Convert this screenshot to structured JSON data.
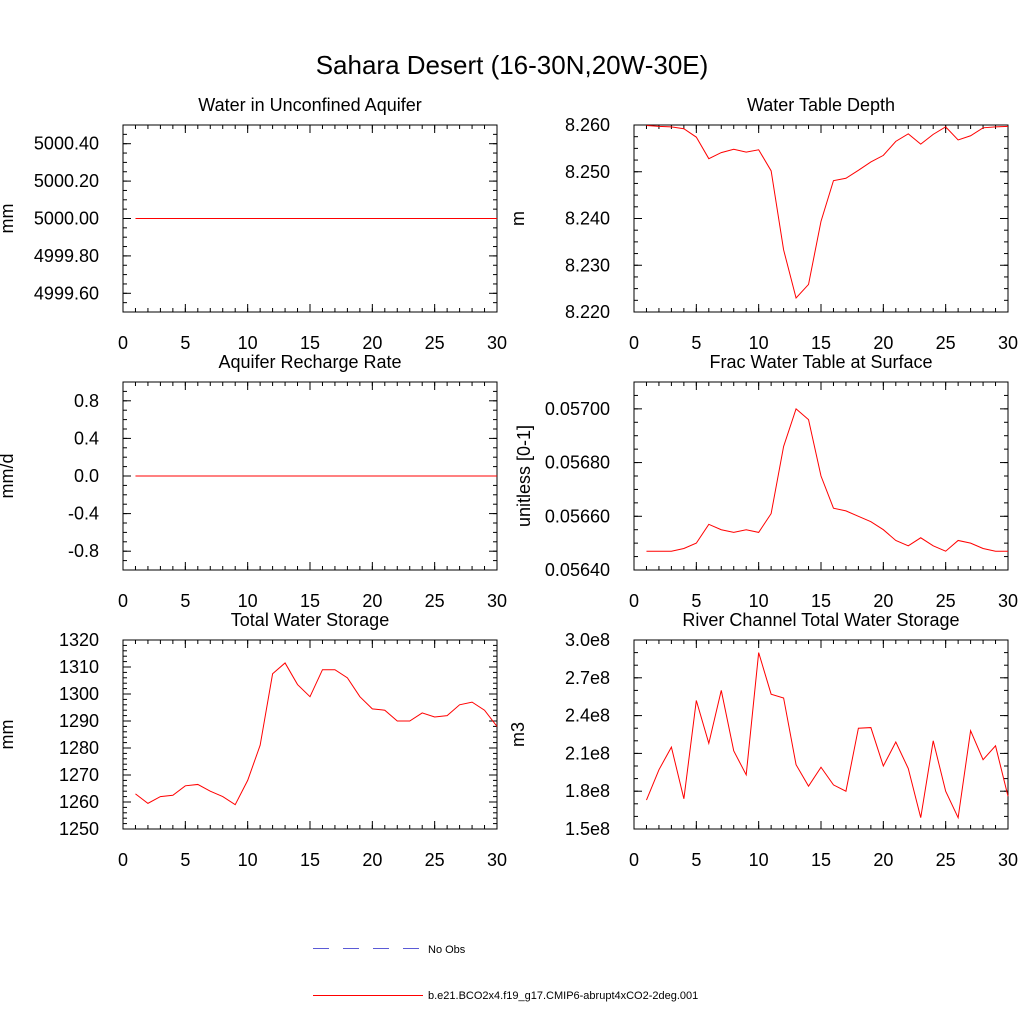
{
  "title": "Sahara Desert (16-30N,20W-30E)",
  "colors": {
    "model": "#ff0000",
    "obs": "#5b5bd6"
  },
  "legend": [
    {
      "label": "No Obs",
      "style": "dashed",
      "color": "#5b5bd6"
    },
    {
      "label": "b.e21.BCO2x4.f19_g17.CMIP6-abrupt4xCO2-2deg.001",
      "style": "solid",
      "color": "#ff0000"
    }
  ],
  "chart_data": [
    {
      "type": "line",
      "title": "Water in Unconfined Aquifer",
      "ylabel": "mm",
      "xlim": [
        0,
        30
      ],
      "xticks": [
        0,
        5,
        10,
        15,
        20,
        25,
        30
      ],
      "ylim": [
        4999.5,
        5000.5
      ],
      "yticks": [
        4999.6,
        4999.8,
        5000.0,
        5000.2,
        5000.4
      ],
      "ytick_labels": [
        "4999.60",
        "4999.80",
        "5000.00",
        "5000.20",
        "5000.40"
      ],
      "yminor": 0.05,
      "x": [
        1,
        2,
        3,
        4,
        5,
        6,
        7,
        8,
        9,
        10,
        11,
        12,
        13,
        14,
        15,
        16,
        17,
        18,
        19,
        20,
        21,
        22,
        23,
        24,
        25,
        26,
        27,
        28,
        29,
        30
      ],
      "series": [
        {
          "name": "b.e21.BCO2x4.f19_g17.CMIP6-abrupt4xCO2-2deg.001",
          "values": [
            5000,
            5000,
            5000,
            5000,
            5000,
            5000,
            5000,
            5000,
            5000,
            5000,
            5000,
            5000,
            5000,
            5000,
            5000,
            5000,
            5000,
            5000,
            5000,
            5000,
            5000,
            5000,
            5000,
            5000,
            5000,
            5000,
            5000,
            5000,
            5000,
            5000
          ]
        }
      ]
    },
    {
      "type": "line",
      "title": "Water Table Depth",
      "ylabel": "m",
      "xlim": [
        0,
        30
      ],
      "xticks": [
        0,
        5,
        10,
        15,
        20,
        25,
        30
      ],
      "ylim": [
        8.22,
        8.26
      ],
      "yticks": [
        8.22,
        8.23,
        8.24,
        8.25,
        8.26
      ],
      "ytick_labels": [
        "8.220",
        "8.230",
        "8.240",
        "8.250",
        "8.260"
      ],
      "yminor": 0.0025,
      "x": [
        1,
        2,
        3,
        4,
        5,
        6,
        7,
        8,
        9,
        10,
        11,
        12,
        13,
        14,
        15,
        16,
        17,
        18,
        19,
        20,
        21,
        22,
        23,
        24,
        25,
        26,
        27,
        28,
        29,
        30
      ],
      "series": [
        {
          "name": "b.e21.BCO2x4.f19_g17.CMIP6-abrupt4xCO2-2deg.001",
          "values": [
            8.2599,
            8.2597,
            8.2596,
            8.2592,
            8.2574,
            8.2528,
            8.2541,
            8.2548,
            8.2542,
            8.2547,
            8.2502,
            8.2333,
            8.223,
            8.2259,
            8.2394,
            8.2481,
            8.2486,
            8.2503,
            8.2521,
            8.2535,
            8.2565,
            8.2581,
            8.2559,
            8.258,
            8.2596,
            8.2568,
            8.2577,
            8.2594,
            8.2596,
            8.2597
          ]
        }
      ]
    },
    {
      "type": "line",
      "title": "Aquifer Recharge Rate",
      "ylabel": "mm/d",
      "xlim": [
        0,
        30
      ],
      "xticks": [
        0,
        5,
        10,
        15,
        20,
        25,
        30
      ],
      "ylim": [
        -1.0,
        1.0
      ],
      "yticks": [
        -0.8,
        -0.4,
        0.0,
        0.4,
        0.8
      ],
      "ytick_labels": [
        "-0.8",
        "-0.4",
        "0.0",
        "0.4",
        "0.8"
      ],
      "yminor": 0.1,
      "x": [
        1,
        2,
        3,
        4,
        5,
        6,
        7,
        8,
        9,
        10,
        11,
        12,
        13,
        14,
        15,
        16,
        17,
        18,
        19,
        20,
        21,
        22,
        23,
        24,
        25,
        26,
        27,
        28,
        29,
        30
      ],
      "series": [
        {
          "name": "b.e21.BCO2x4.f19_g17.CMIP6-abrupt4xCO2-2deg.001",
          "values": [
            0,
            0,
            0,
            0,
            0,
            0,
            0,
            0,
            0,
            0,
            0,
            0,
            0,
            0,
            0,
            0,
            0,
            0,
            0,
            0,
            0,
            0,
            0,
            0,
            0,
            0,
            0,
            0,
            0,
            0
          ]
        }
      ]
    },
    {
      "type": "line",
      "title": "Frac Water Table at Surface",
      "ylabel": "unitless [0-1]",
      "xlim": [
        0,
        30
      ],
      "xticks": [
        0,
        5,
        10,
        15,
        20,
        25,
        30
      ],
      "ylim": [
        0.0564,
        0.0571
      ],
      "yticks": [
        0.0564,
        0.0566,
        0.0568,
        0.057
      ],
      "ytick_labels": [
        "0.05640",
        "0.05660",
        "0.05680",
        "0.05700"
      ],
      "yminor": 5e-05,
      "x": [
        1,
        2,
        3,
        4,
        5,
        6,
        7,
        8,
        9,
        10,
        11,
        12,
        13,
        14,
        15,
        16,
        17,
        18,
        19,
        20,
        21,
        22,
        23,
        24,
        25,
        26,
        27,
        28,
        29,
        30
      ],
      "series": [
        {
          "name": "b.e21.BCO2x4.f19_g17.CMIP6-abrupt4xCO2-2deg.001",
          "values": [
            0.05647,
            0.05647,
            0.05647,
            0.05648,
            0.0565,
            0.05657,
            0.05655,
            0.05654,
            0.05655,
            0.05654,
            0.05661,
            0.05686,
            0.057,
            0.05696,
            0.05675,
            0.05663,
            0.05662,
            0.0566,
            0.05658,
            0.05655,
            0.05651,
            0.05649,
            0.05652,
            0.05649,
            0.05647,
            0.05651,
            0.0565,
            0.05648,
            0.05647,
            0.05647
          ]
        }
      ]
    },
    {
      "type": "line",
      "title": "Total Water Storage",
      "ylabel": "mm",
      "xlim": [
        0,
        30
      ],
      "xticks": [
        0,
        5,
        10,
        15,
        20,
        25,
        30
      ],
      "ylim": [
        1250,
        1320
      ],
      "yticks": [
        1250,
        1260,
        1270,
        1280,
        1290,
        1300,
        1310,
        1320
      ],
      "ytick_labels": [
        "1250",
        "1260",
        "1270",
        "1280",
        "1290",
        "1300",
        "1310",
        "1320"
      ],
      "yminor": 2,
      "x": [
        1,
        2,
        3,
        4,
        5,
        6,
        7,
        8,
        9,
        10,
        11,
        12,
        13,
        14,
        15,
        16,
        17,
        18,
        19,
        20,
        21,
        22,
        23,
        24,
        25,
        26,
        27,
        28,
        29,
        30
      ],
      "series": [
        {
          "name": "b.e21.BCO2x4.f19_g17.CMIP6-abrupt4xCO2-2deg.001",
          "values": [
            1263,
            1259.5,
            1262,
            1262.5,
            1266,
            1266.5,
            1264,
            1262,
            1259,
            1268,
            1281,
            1307.5,
            1311.5,
            1303.5,
            1299,
            1309,
            1309,
            1306,
            1299,
            1294.5,
            1294,
            1290,
            1290,
            1293,
            1291.5,
            1292,
            1296,
            1297,
            1294,
            1288
          ]
        }
      ]
    },
    {
      "type": "line",
      "title": "River Channel Total Water Storage",
      "ylabel": "m3",
      "xlim": [
        0,
        30
      ],
      "xticks": [
        0,
        5,
        10,
        15,
        20,
        25,
        30
      ],
      "ylim": [
        150000000,
        300000000
      ],
      "yticks": [
        150000000,
        180000000,
        210000000,
        240000000,
        270000000,
        300000000
      ],
      "ytick_labels": [
        "1.5e8",
        "1.8e8",
        "2.1e8",
        "2.4e8",
        "2.7e8",
        "3.0e8"
      ],
      "yminor": 10000000,
      "x": [
        1,
        2,
        3,
        4,
        5,
        6,
        7,
        8,
        9,
        10,
        11,
        12,
        13,
        14,
        15,
        16,
        17,
        18,
        19,
        20,
        21,
        22,
        23,
        24,
        25,
        26,
        27,
        28,
        29,
        30
      ],
      "series": [
        {
          "name": "b.e21.BCO2x4.f19_g17.CMIP6-abrupt4xCO2-2deg.001",
          "values": [
            173000000,
            197000000,
            215000000,
            174000000,
            252000000,
            218000000,
            260000000,
            212000000,
            193000000,
            290000000,
            257000000,
            254000000,
            201000000,
            184000000,
            199000000,
            185000000,
            180000000,
            230000000,
            230500000,
            200000000,
            219000000,
            198000000,
            159000000,
            220000000,
            180000000,
            159000000,
            228000000,
            205000000,
            216000000,
            176000000
          ]
        }
      ]
    }
  ]
}
